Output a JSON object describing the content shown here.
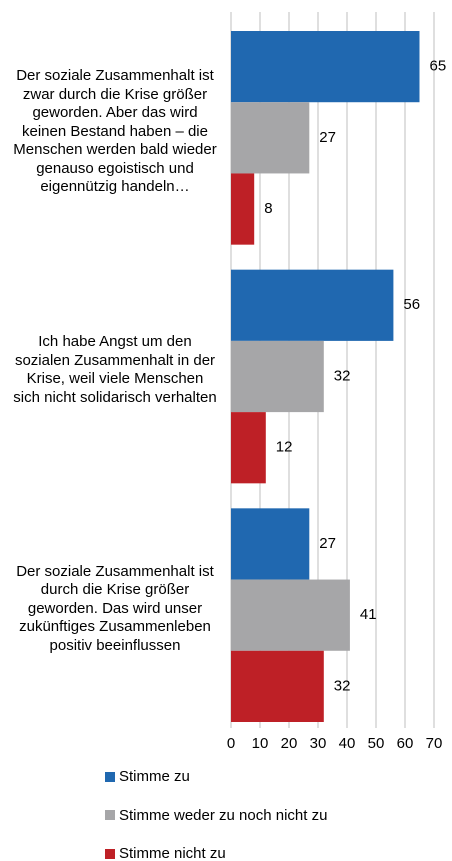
{
  "chart_data": {
    "type": "bar",
    "orientation": "horizontal",
    "categories": [
      "Der soziale Zusammenhalt ist zwar durch die Krise größer geworden. Aber das wird keinen Bestand haben – die Menschen werden bald wieder genauso egoistisch und eigennützig handeln…",
      "Ich habe Angst um den sozialen Zusammenhalt in der Krise, weil viele Menschen sich nicht solidarisch verhalten",
      "Der soziale Zusammenhalt ist durch die Krise größer geworden. Das wird unser zukünftiges Zusammenleben positiv beeinflussen"
    ],
    "series": [
      {
        "name": "Stimme zu",
        "color": "#2068b0",
        "values": [
          65,
          56,
          27
        ]
      },
      {
        "name": "Stimme weder zu noch nicht zu",
        "color": "#a6a6a8",
        "values": [
          27,
          32,
          41
        ]
      },
      {
        "name": "Stimme nicht zu",
        "color": "#be2026",
        "values": [
          8,
          12,
          32
        ]
      }
    ],
    "xlim": [
      0,
      70
    ],
    "xticks": [
      0,
      10,
      20,
      30,
      40,
      50,
      60,
      70
    ],
    "grid": true
  }
}
